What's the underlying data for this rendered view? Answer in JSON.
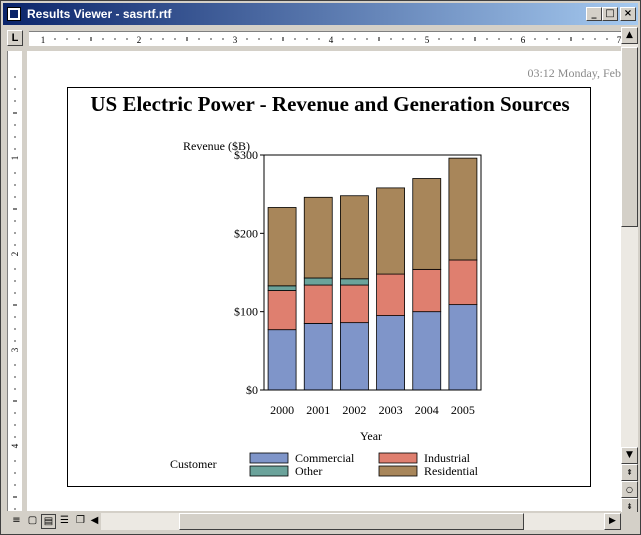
{
  "window": {
    "title": "Results Viewer - sasrtf.rtf",
    "buttons": {
      "minimize": "_",
      "maximize": "□",
      "close": "×"
    }
  },
  "ruler": {
    "corner": "L",
    "h_numbers": [
      "1",
      "2",
      "3",
      "4",
      "5",
      "6",
      "7"
    ],
    "v_numbers": [
      "1",
      "2",
      "3",
      "4"
    ]
  },
  "document": {
    "header_datetime": "03:12  Monday, Feb"
  },
  "colors": {
    "commercial": "#7f95c9",
    "industrial": "#df7f6f",
    "other": "#6ba39b",
    "residential": "#a8865a",
    "titlebar": "#0a246a"
  },
  "chart_data": {
    "type": "bar",
    "stacked": true,
    "title": "US Electric Power - Revenue and Generation Sources",
    "xlabel": "Year",
    "ylabel": "Revenue ($B)",
    "categories": [
      "2000",
      "2001",
      "2002",
      "2003",
      "2004",
      "2005"
    ],
    "ylim": [
      0,
      300
    ],
    "yticks": [
      0,
      100,
      200,
      300
    ],
    "ytick_labels": [
      "$0",
      "$100",
      "$200",
      "$300"
    ],
    "series": [
      {
        "name": "Commercial",
        "values": [
          77,
          85,
          86,
          95,
          100,
          109
        ]
      },
      {
        "name": "Industrial",
        "values": [
          50,
          49,
          48,
          53,
          54,
          57
        ]
      },
      {
        "name": "Other",
        "values": [
          6,
          9,
          8,
          0,
          0,
          0
        ]
      },
      {
        "name": "Residential",
        "values": [
          100,
          103,
          106,
          110,
          116,
          130
        ]
      }
    ],
    "legend": {
      "title": "Customer",
      "placement": "bottom",
      "entries": [
        "Commercial",
        "Industrial",
        "Other",
        "Residential"
      ]
    }
  }
}
